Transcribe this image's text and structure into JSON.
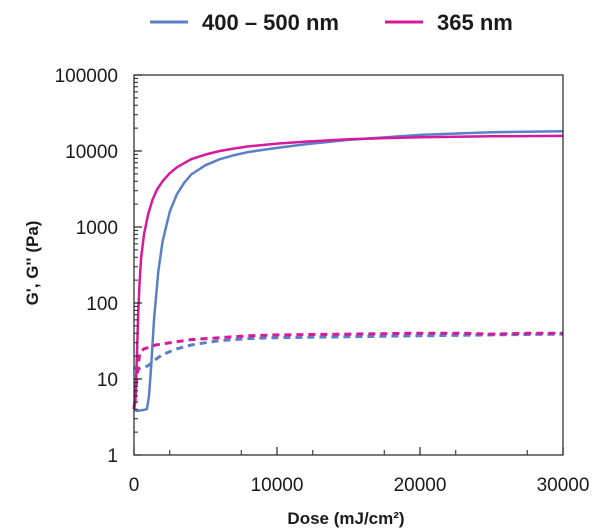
{
  "chart_data": {
    "type": "line",
    "title": "",
    "xlabel": "Dose (mJ/cm²)",
    "ylabel": "G', G'' (Pa)",
    "xlim": [
      0,
      30000
    ],
    "ylim": [
      1,
      100000
    ],
    "yscale": "log",
    "x_ticks": [
      "0",
      "10000",
      "20000",
      "30000"
    ],
    "y_ticks": [
      "1",
      "10",
      "100",
      "1000",
      "10000",
      "100000"
    ],
    "grid": false,
    "legend_position": "top",
    "series": [
      {
        "name": "400 – 500 nm",
        "color": "#5b7fc7",
        "style": "solid",
        "x": [
          0,
          200,
          600,
          900,
          1050,
          1200,
          1400,
          1700,
          2000,
          2500,
          3000,
          3500,
          4000,
          5000,
          6000,
          7000,
          8000,
          10000,
          12000,
          15000,
          20000,
          25000,
          30000
        ],
        "y": [
          4,
          3.8,
          3.9,
          4,
          6,
          15,
          60,
          260,
          650,
          1600,
          2700,
          3800,
          4900,
          6500,
          7800,
          8800,
          9700,
          11000,
          12300,
          14000,
          16300,
          17600,
          18200
        ]
      },
      {
        "name": "400 – 500 nm",
        "color": "#5b7fc7",
        "style": "dashed",
        "x": [
          0,
          300,
          600,
          1000,
          1500,
          2000,
          3000,
          4000,
          5000,
          6000,
          7000,
          8000,
          10000,
          15000,
          20000,
          25000,
          30000
        ],
        "y": [
          14,
          13.5,
          14,
          15,
          18,
          21,
          25,
          28,
          30,
          32,
          33,
          34,
          35,
          36,
          37,
          38,
          39
        ]
      },
      {
        "name": "365 nm",
        "color": "#d41a9a",
        "style": "solid",
        "x": [
          0,
          100,
          200,
          300,
          400,
          500,
          700,
          1000,
          1300,
          1600,
          2000,
          2500,
          3000,
          4000,
          5000,
          6000,
          7000,
          8000,
          10000,
          12000,
          15000,
          20000,
          25000,
          30000
        ],
        "y": [
          4,
          5,
          20,
          80,
          200,
          400,
          800,
          1500,
          2300,
          3100,
          4000,
          5100,
          6100,
          7800,
          9000,
          10000,
          10800,
          11500,
          12500,
          13300,
          14300,
          15200,
          15600,
          15800
        ]
      },
      {
        "name": "365 nm",
        "color": "#d41a9a",
        "style": "dashed",
        "x": [
          0,
          200,
          400,
          700,
          1000,
          1500,
          2000,
          3000,
          4000,
          6000,
          8000,
          10000,
          15000,
          20000,
          23000,
          25000,
          28000,
          30000
        ],
        "y": [
          4,
          10,
          22,
          25,
          26,
          28,
          29,
          31,
          33,
          35,
          37,
          38,
          39,
          40,
          40,
          39,
          40,
          40
        ]
      }
    ]
  }
}
